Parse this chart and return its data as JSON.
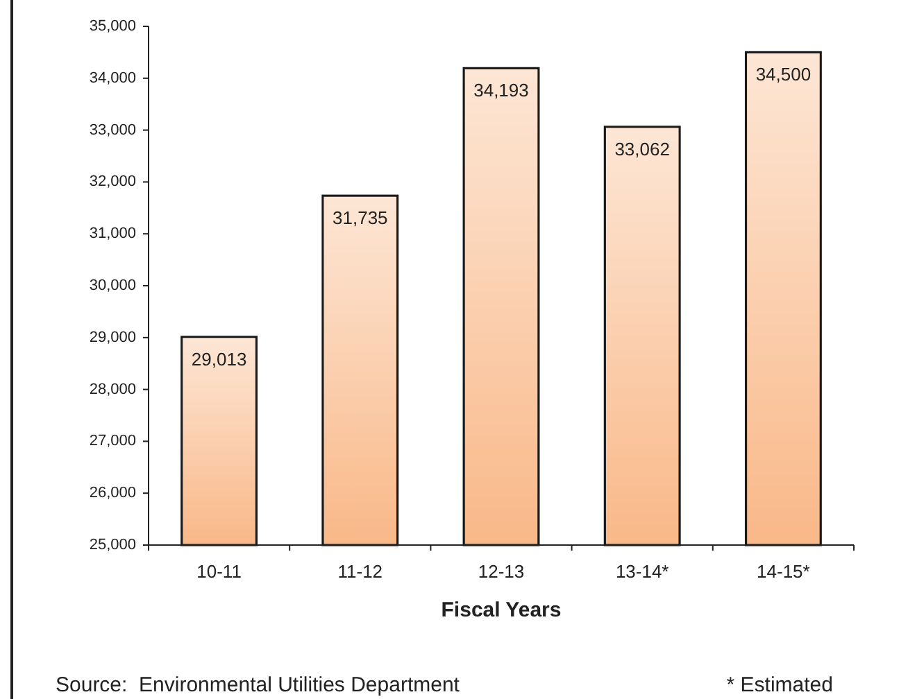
{
  "chart_data": {
    "type": "bar",
    "xlabel": "Fiscal Years",
    "categories": [
      "10-11",
      "11-12",
      "12-13",
      "13-14*",
      "14-15*"
    ],
    "values": [
      29013,
      31735,
      34193,
      33062,
      34500
    ],
    "color": "#f9b888",
    "value_labels": [
      "29,013",
      "31,735",
      "34,193",
      "33,062",
      "34,500"
    ],
    "ylim": [
      25000,
      35000
    ],
    "yticks": [
      {
        "value": 25000,
        "label": "25,000"
      },
      {
        "value": 26000,
        "label": "26,000"
      },
      {
        "value": 27000,
        "label": "27,000"
      },
      {
        "value": 28000,
        "label": "28,000"
      },
      {
        "value": 29000,
        "label": "29,000"
      },
      {
        "value": 30000,
        "label": "30,000"
      },
      {
        "value": 31000,
        "label": "31,000"
      },
      {
        "value": 32000,
        "label": "32,000"
      },
      {
        "value": 33000,
        "label": "33,000"
      },
      {
        "value": 34000,
        "label": "34,000"
      },
      {
        "value": 35000,
        "label": "35,000"
      }
    ],
    "grid": false,
    "annotations": [
      "Source:  Environmental Utilities Department",
      "* Estimated"
    ]
  }
}
